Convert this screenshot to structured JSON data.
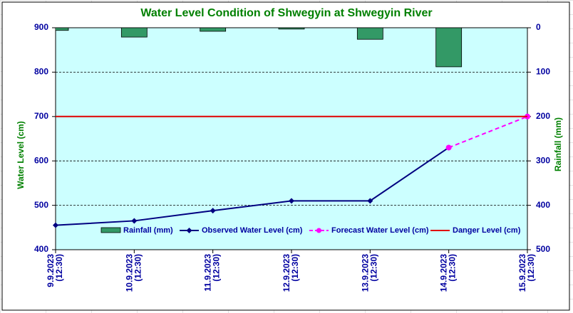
{
  "chart_data": {
    "type": "bar_line",
    "title": "Water Level Condition of  Shwegyin at Shwegyin River",
    "y_label": "Water Level (cm)",
    "y2_label": "Rainfall (mm)",
    "categories": [
      "9.9.2023 (12:30)",
      "10.9.2023 (12:30)",
      "11.9.2023 (12:30)",
      "12.9.2023 (12:30)",
      "13.9.2023 (12:30)",
      "14.9.2023 (12:30)",
      "15.9.2023 (12:30)"
    ],
    "ylim": [
      400,
      900
    ],
    "yticks": [
      400,
      500,
      600,
      700,
      800,
      900
    ],
    "y2lim": [
      0,
      500
    ],
    "y2ticks": [
      0,
      100,
      200,
      300,
      400,
      500
    ],
    "y2_inverted": true,
    "grid": true,
    "series": [
      {
        "name": "Rainfall (mm)",
        "type": "bar",
        "axis": "y2",
        "color": "#339966",
        "values": [
          6,
          21,
          8,
          3,
          26,
          88,
          null
        ]
      },
      {
        "name": "Observed Water Level (cm)",
        "type": "line",
        "color": "#000080",
        "marker": "diamond",
        "values": [
          455,
          465,
          488,
          510,
          510,
          630,
          null
        ]
      },
      {
        "name": "Forecast Water Level (cm)",
        "type": "line",
        "color": "#ff00ff",
        "dashed": true,
        "marker": "circle",
        "values": [
          null,
          null,
          null,
          null,
          null,
          630,
          700
        ]
      },
      {
        "name": "Danger Level (cm)",
        "type": "line",
        "color": "#e00000",
        "values": [
          700,
          700,
          700,
          700,
          700,
          700,
          700
        ]
      }
    ]
  }
}
